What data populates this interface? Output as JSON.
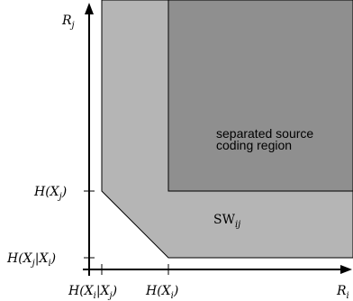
{
  "axes": {
    "y_axis_label": "R",
    "y_axis_label_sub": "j",
    "x_axis_label": "R",
    "x_axis_label_sub": "i"
  },
  "y_ticks": {
    "h_xj": "H(X",
    "h_xj_sub": "j",
    "h_xj_close": ")",
    "h_xj_given_xi": "H(X",
    "h_xj_given_xi_sub1": "j",
    "h_xj_given_xi_mid": "|X",
    "h_xj_given_xi_sub2": "i",
    "h_xj_given_xi_close": ")"
  },
  "x_ticks": {
    "h_xi_given_xj": "H(X",
    "h_xi_given_xj_sub1": "i",
    "h_xi_given_xj_mid": "|X",
    "h_xi_given_xj_sub2": "j",
    "h_xi_given_xj_close": ")",
    "h_xi": "H(X",
    "h_xi_sub": "i",
    "h_xi_close": ")"
  },
  "regions": {
    "separated_line1": "separated source",
    "separated_line2": "coding region",
    "sw_label": "SW",
    "sw_label_sub": "ij"
  },
  "colors": {
    "outer_region": "#b5b5b5",
    "inner_region": "#8f8f8f",
    "axis": "#000000"
  }
}
